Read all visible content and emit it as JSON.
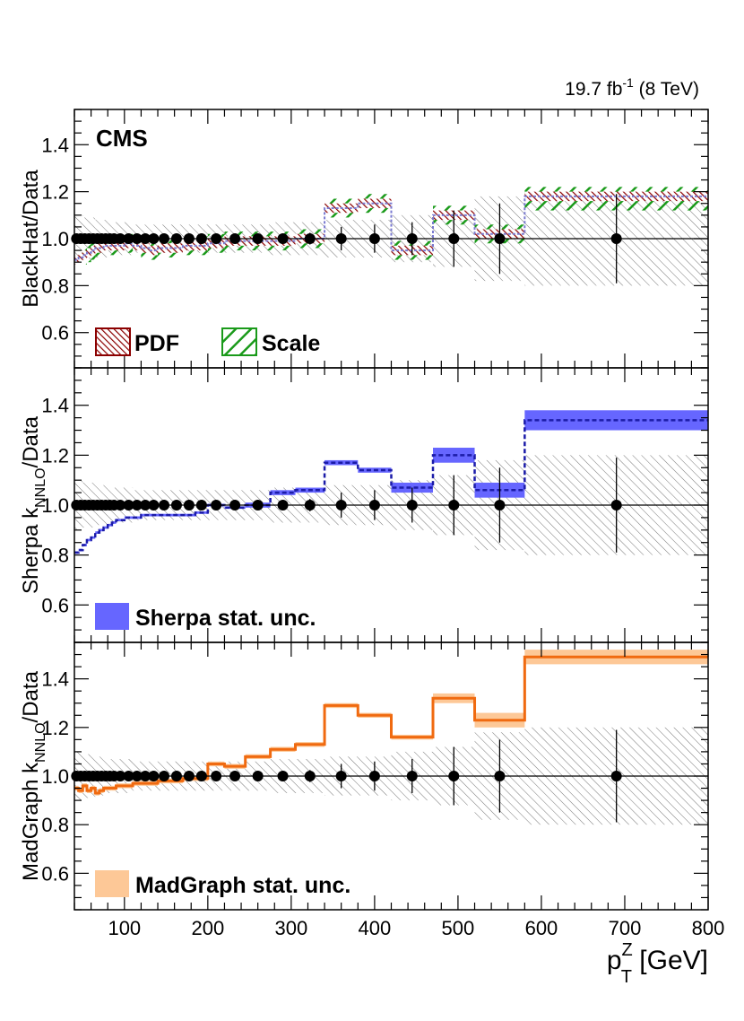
{
  "chart_data": {
    "type": "step-ratio",
    "lumi_label": {
      "main": "19.7 fb",
      "sup": "-1",
      "rest": " (8 TeV)"
    },
    "experiment": "CMS",
    "xlabel": {
      "base": "p",
      "sub": "T",
      "sup": "Z",
      "rest": " [GeV]"
    },
    "xlim": [
      40,
      800
    ],
    "xticks": [
      100,
      200,
      300,
      400,
      500,
      600,
      700,
      800
    ],
    "ylim": [
      0.45,
      1.55
    ],
    "yticks": [
      0.6,
      0.8,
      1.0,
      1.2,
      1.4
    ],
    "bins": [
      [
        40,
        45
      ],
      [
        45,
        50
      ],
      [
        50,
        55
      ],
      [
        55,
        60
      ],
      [
        60,
        65
      ],
      [
        65,
        70
      ],
      [
        70,
        75
      ],
      [
        75,
        80
      ],
      [
        80,
        85
      ],
      [
        85,
        90
      ],
      [
        90,
        100
      ],
      [
        100,
        110
      ],
      [
        110,
        120
      ],
      [
        120,
        130
      ],
      [
        130,
        140
      ],
      [
        140,
        155
      ],
      [
        155,
        170
      ],
      [
        170,
        185
      ],
      [
        185,
        200
      ],
      [
        200,
        220
      ],
      [
        220,
        245
      ],
      [
        245,
        275
      ],
      [
        275,
        305
      ],
      [
        305,
        340
      ],
      [
        340,
        380
      ],
      [
        380,
        420
      ],
      [
        420,
        470
      ],
      [
        470,
        520
      ],
      [
        520,
        580
      ],
      [
        580,
        800
      ]
    ],
    "data": {
      "x": [
        42.5,
        47.5,
        52.5,
        57.5,
        62.5,
        67.5,
        72.5,
        77.5,
        82.5,
        87.5,
        95,
        105,
        115,
        125,
        135,
        147.5,
        162.5,
        177.5,
        192.5,
        210,
        232.5,
        260,
        290,
        322.5,
        360,
        400,
        445,
        495,
        550,
        690
      ],
      "y": [
        1,
        1,
        1,
        1,
        1,
        1,
        1,
        1,
        1,
        1,
        1,
        1,
        1,
        1,
        1,
        1,
        1,
        1,
        1,
        1,
        1,
        1,
        1,
        1,
        1,
        1,
        1,
        1,
        1,
        1
      ],
      "err_up": [
        0,
        0,
        0,
        0,
        0,
        0,
        0,
        0,
        0,
        0,
        0,
        0,
        0,
        0,
        0,
        0,
        0,
        0,
        0,
        0,
        0.01,
        0.015,
        0.02,
        0.025,
        0.05,
        0.06,
        0.07,
        0.12,
        0.15,
        0.19
      ],
      "err_down": [
        0,
        0,
        0,
        0,
        0,
        0,
        0,
        0,
        0,
        0,
        0,
        0,
        0,
        0,
        0,
        0,
        0,
        0,
        0,
        0,
        0.01,
        0.015,
        0.02,
        0.025,
        0.05,
        0.06,
        0.07,
        0.12,
        0.15,
        0.19
      ]
    },
    "data_syst_band": {
      "lo": [
        0.9,
        0.9,
        0.91,
        0.91,
        0.91,
        0.92,
        0.92,
        0.92,
        0.93,
        0.93,
        0.93,
        0.93,
        0.94,
        0.94,
        0.94,
        0.94,
        0.94,
        0.94,
        0.94,
        0.94,
        0.94,
        0.94,
        0.93,
        0.93,
        0.92,
        0.92,
        0.9,
        0.88,
        0.82,
        0.8
      ],
      "hi": [
        1.1,
        1.1,
        1.09,
        1.09,
        1.09,
        1.08,
        1.08,
        1.08,
        1.07,
        1.07,
        1.07,
        1.07,
        1.06,
        1.06,
        1.06,
        1.06,
        1.06,
        1.06,
        1.06,
        1.06,
        1.06,
        1.06,
        1.07,
        1.07,
        1.08,
        1.08,
        1.1,
        1.12,
        1.18,
        1.2
      ]
    },
    "panels": [
      {
        "name": "blackhat",
        "ylabel": "BlackHat/Data",
        "central": [
          0.91,
          0.92,
          0.93,
          0.94,
          0.95,
          0.96,
          0.96,
          0.97,
          0.97,
          0.97,
          0.97,
          0.98,
          0.97,
          0.96,
          0.95,
          0.96,
          0.96,
          0.97,
          0.97,
          0.98,
          0.99,
          0.99,
          0.99,
          1.0,
          1.13,
          1.15,
          0.95,
          1.1,
          1.02,
          1.18
        ],
        "pdf_band": {
          "lo": [
            0.89,
            0.9,
            0.91,
            0.92,
            0.93,
            0.94,
            0.94,
            0.95,
            0.95,
            0.95,
            0.95,
            0.96,
            0.95,
            0.94,
            0.93,
            0.94,
            0.94,
            0.95,
            0.95,
            0.96,
            0.97,
            0.97,
            0.97,
            0.98,
            1.11,
            1.13,
            0.93,
            1.08,
            1.0,
            1.16
          ],
          "hi": [
            0.93,
            0.94,
            0.95,
            0.96,
            0.97,
            0.98,
            0.98,
            0.99,
            0.99,
            0.99,
            0.99,
            1.0,
            0.99,
            0.98,
            0.97,
            0.98,
            0.98,
            0.99,
            0.99,
            1.0,
            1.01,
            1.01,
            1.01,
            1.02,
            1.15,
            1.17,
            0.97,
            1.12,
            1.04,
            1.2
          ]
        },
        "scale_band": {
          "lo": [
            0.87,
            0.88,
            0.89,
            0.9,
            0.91,
            0.92,
            0.92,
            0.93,
            0.93,
            0.93,
            0.93,
            0.94,
            0.93,
            0.92,
            0.91,
            0.92,
            0.92,
            0.93,
            0.93,
            0.94,
            0.95,
            0.95,
            0.95,
            0.96,
            1.09,
            1.11,
            0.91,
            1.06,
            0.98,
            1.12
          ],
          "hi": [
            0.95,
            0.96,
            0.97,
            0.98,
            0.99,
            1.0,
            1.0,
            1.01,
            1.01,
            1.01,
            1.01,
            1.02,
            1.01,
            1.0,
            0.99,
            1.0,
            1.0,
            1.01,
            1.01,
            1.02,
            1.03,
            1.03,
            1.03,
            1.04,
            1.17,
            1.19,
            0.99,
            1.14,
            1.06,
            1.22
          ]
        },
        "legend": [
          {
            "label": "PDF",
            "style": "pdf",
            "color": "#8b0000"
          },
          {
            "label": "Scale",
            "style": "scale",
            "color": "#1a9a1a"
          }
        ]
      },
      {
        "name": "sherpa",
        "ylabel": {
          "base": "Sherpa k",
          "sub": "NNLO",
          "rest": "/Data"
        },
        "central": [
          0.81,
          0.82,
          0.84,
          0.86,
          0.87,
          0.89,
          0.9,
          0.91,
          0.92,
          0.93,
          0.94,
          0.95,
          0.95,
          0.96,
          0.96,
          0.96,
          0.96,
          0.96,
          0.97,
          1.0,
          0.99,
          1.0,
          1.05,
          1.06,
          1.17,
          1.14,
          1.07,
          1.2,
          1.06,
          1.34
        ],
        "band": {
          "lo": [
            0.805,
            0.815,
            0.835,
            0.855,
            0.865,
            0.885,
            0.895,
            0.905,
            0.915,
            0.925,
            0.935,
            0.945,
            0.945,
            0.955,
            0.955,
            0.955,
            0.955,
            0.955,
            0.965,
            0.995,
            0.985,
            0.99,
            1.04,
            1.05,
            1.16,
            1.13,
            1.05,
            1.17,
            1.03,
            1.3
          ],
          "hi": [
            0.815,
            0.825,
            0.845,
            0.865,
            0.875,
            0.895,
            0.905,
            0.915,
            0.925,
            0.935,
            0.945,
            0.955,
            0.955,
            0.965,
            0.965,
            0.965,
            0.965,
            0.965,
            0.975,
            1.005,
            0.995,
            1.01,
            1.06,
            1.07,
            1.18,
            1.15,
            1.09,
            1.23,
            1.09,
            1.38
          ]
        },
        "legend": [
          {
            "label": "Sherpa stat. unc.",
            "style": "solid",
            "color": "#6666ff"
          }
        ],
        "line_color": "#1c1ca8"
      },
      {
        "name": "madgraph",
        "ylabel": {
          "base": "MadGraph k",
          "sub": "NNLO",
          "rest": "/Data"
        },
        "central": [
          0.95,
          0.94,
          0.96,
          0.94,
          0.95,
          0.93,
          0.94,
          0.95,
          0.95,
          0.95,
          0.96,
          0.96,
          0.97,
          0.97,
          0.97,
          0.98,
          0.98,
          0.99,
          0.99,
          1.05,
          1.04,
          1.08,
          1.11,
          1.13,
          1.29,
          1.25,
          1.16,
          1.32,
          1.23,
          1.49
        ],
        "band": {
          "lo": [
            0.94,
            0.93,
            0.95,
            0.93,
            0.94,
            0.92,
            0.93,
            0.94,
            0.94,
            0.94,
            0.95,
            0.95,
            0.96,
            0.96,
            0.96,
            0.97,
            0.97,
            0.98,
            0.98,
            1.04,
            1.03,
            1.07,
            1.1,
            1.12,
            1.28,
            1.24,
            1.15,
            1.3,
            1.2,
            1.46
          ],
          "hi": [
            0.96,
            0.95,
            0.97,
            0.95,
            0.96,
            0.94,
            0.95,
            0.96,
            0.96,
            0.96,
            0.97,
            0.97,
            0.98,
            0.98,
            0.98,
            0.99,
            0.99,
            1.0,
            1.0,
            1.06,
            1.05,
            1.09,
            1.12,
            1.14,
            1.3,
            1.26,
            1.17,
            1.34,
            1.26,
            1.52
          ]
        },
        "legend": [
          {
            "label": "MadGraph stat. unc.",
            "style": "solid",
            "color": "#fdc897"
          }
        ],
        "line_color": "#f06a10"
      }
    ]
  }
}
